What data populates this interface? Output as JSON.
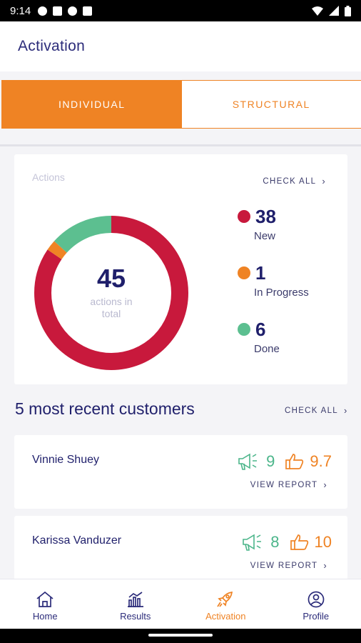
{
  "status_bar": {
    "time": "9:14"
  },
  "app_bar": {
    "title": "Activation"
  },
  "tabs": [
    {
      "label": "INDIVIDUAL",
      "active": true
    },
    {
      "label": "STRUCTURAL",
      "active": false
    }
  ],
  "actions_card": {
    "label": "Actions",
    "check_all": "CHECK ALL",
    "total": "45",
    "total_sub": "actions in total",
    "legend": [
      {
        "value": "38",
        "label": "New",
        "color": "#c8193c"
      },
      {
        "value": "1",
        "label": "In Progress",
        "color": "#ef8324"
      },
      {
        "value": "6",
        "label": "Done",
        "color": "#5cbf90"
      }
    ]
  },
  "chart_data": {
    "type": "pie",
    "categories": [
      "New",
      "In Progress",
      "Done"
    ],
    "values": [
      38,
      1,
      6
    ],
    "colors": [
      "#c8193c",
      "#ef8324",
      "#5cbf90"
    ]
  },
  "recent": {
    "title": "5 most recent customers",
    "check_all": "CHECK ALL",
    "customers": [
      {
        "name": "Vinnie Shuey",
        "announce": "9",
        "score": "9.7",
        "view_report": "VIEW REPORT"
      },
      {
        "name": "Karissa Vanduzer",
        "announce": "8",
        "score": "10",
        "view_report": "VIEW REPORT"
      }
    ]
  },
  "bottom_nav": [
    {
      "label": "Home",
      "icon": "home-icon",
      "active": false
    },
    {
      "label": "Results",
      "icon": "bar-chart-icon",
      "active": false
    },
    {
      "label": "Activation",
      "icon": "rocket-icon",
      "active": true
    },
    {
      "label": "Profile",
      "icon": "profile-icon",
      "active": false
    }
  ]
}
